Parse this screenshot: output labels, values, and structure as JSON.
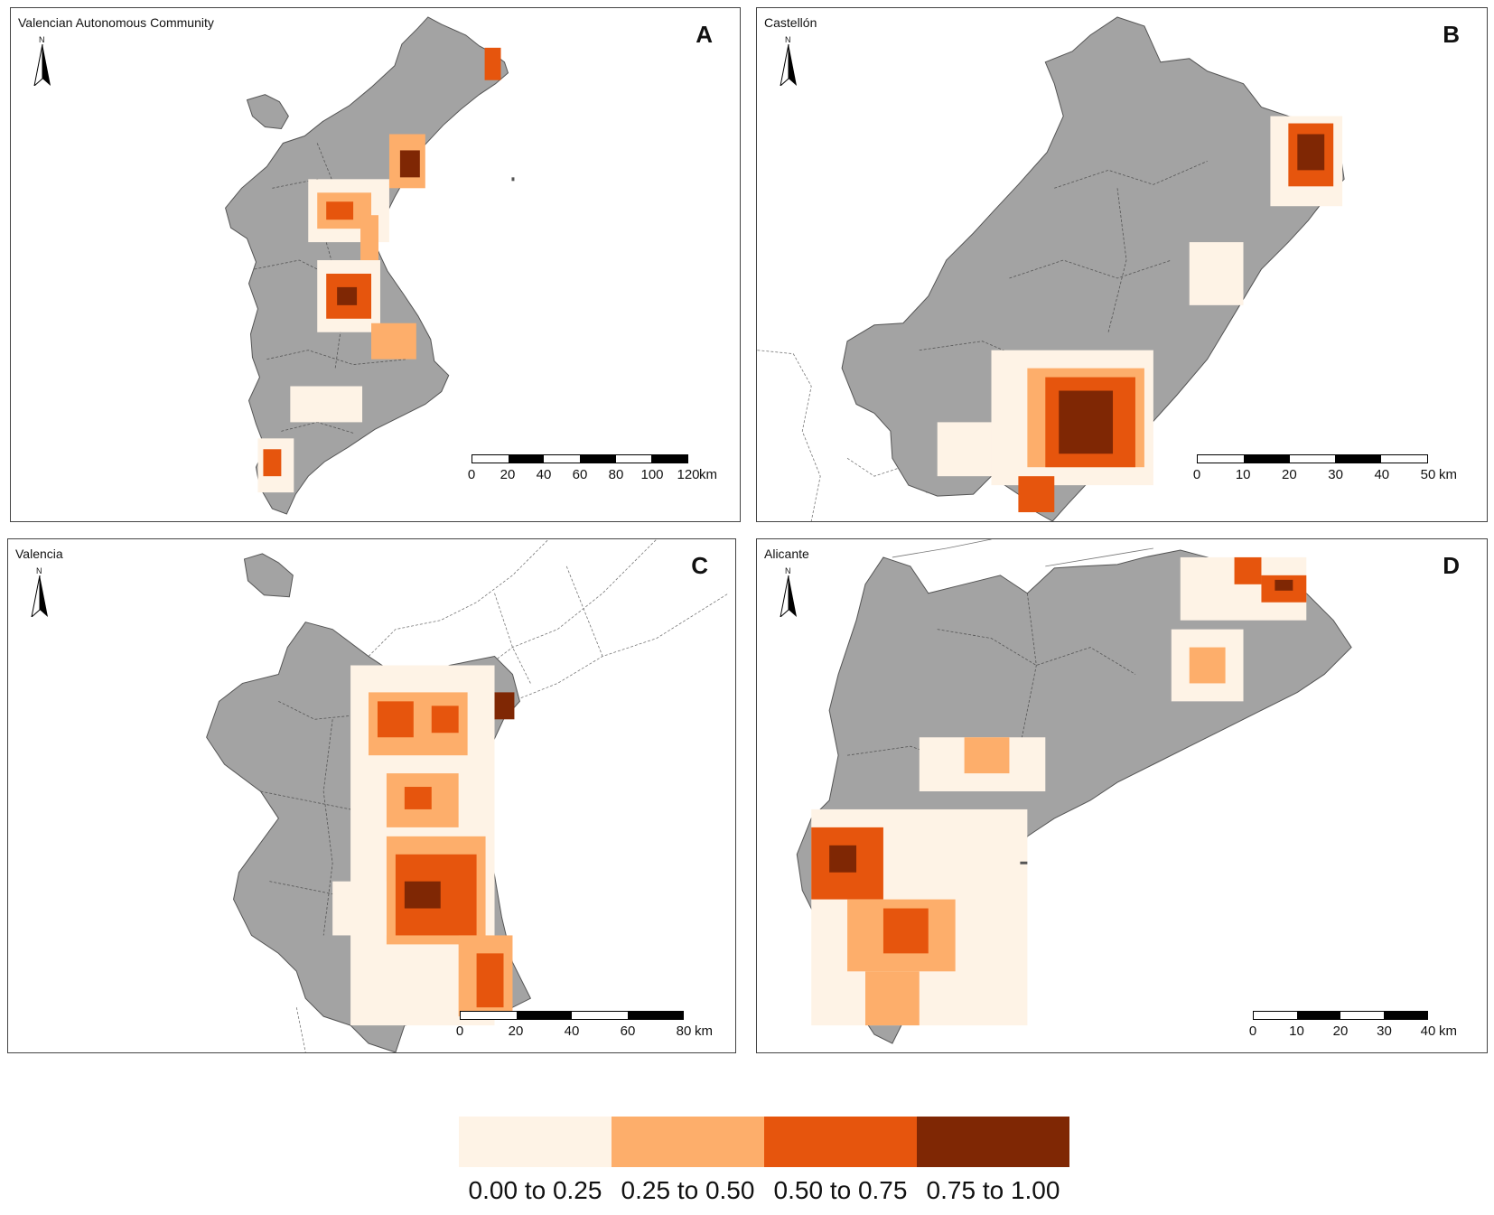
{
  "colors": {
    "land": "#a3a3a3",
    "border": "#555555",
    "class_0": "#fef3e6",
    "class_1": "#fdae6b",
    "class_2": "#e6550d",
    "class_3": "#7f2704"
  },
  "panels": [
    {
      "id": "A",
      "title": "Valencian Autonomous Community",
      "letter": "A",
      "north": "N",
      "scale": {
        "ticks": [
          "0",
          "20",
          "40",
          "60",
          "80",
          "100",
          "120"
        ],
        "unit": "km"
      }
    },
    {
      "id": "B",
      "title": "Castellón",
      "letter": "B",
      "north": "N",
      "scale": {
        "ticks": [
          "0",
          "10",
          "20",
          "30",
          "40",
          "50"
        ],
        "unit": "km"
      }
    },
    {
      "id": "C",
      "title": "Valencia",
      "letter": "C",
      "north": "N",
      "scale": {
        "ticks": [
          "0",
          "20",
          "40",
          "60",
          "80"
        ],
        "unit": "km"
      }
    },
    {
      "id": "D",
      "title": "Alicante",
      "letter": "D",
      "north": "N",
      "scale": {
        "ticks": [
          "0",
          "10",
          "20",
          "30",
          "40"
        ],
        "unit": "km"
      }
    }
  ],
  "legend": {
    "items": [
      {
        "label": "0.00 to 0.25",
        "color": "#fef3e6"
      },
      {
        "label": "0.25 to 0.50",
        "color": "#fdae6b"
      },
      {
        "label": "0.50 to 0.75",
        "color": "#e6550d"
      },
      {
        "label": "0.75 to 1.00",
        "color": "#7f2704"
      }
    ]
  }
}
